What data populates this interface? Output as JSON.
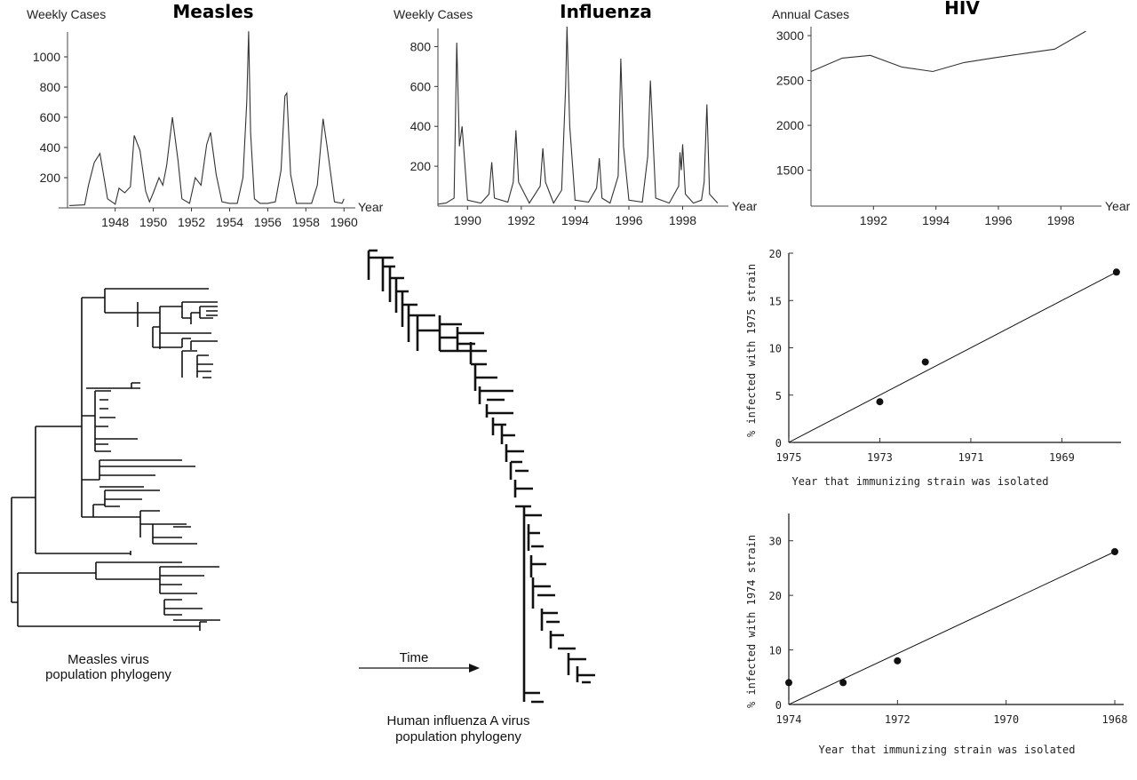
{
  "chart_data": [
    {
      "id": "measles",
      "type": "line",
      "title": "Measles",
      "ylabel": "Weekly Cases",
      "xlabel": "Year",
      "xlim": [
        1945.5,
        1960.5
      ],
      "ylim": [
        0,
        1200
      ],
      "xticks": [
        "1948",
        "1950",
        "1952",
        "1954",
        "1956",
        "1958",
        "1960"
      ],
      "yticks": [
        "200",
        "400",
        "600",
        "800",
        "1000"
      ],
      "series": [
        {
          "x": [
            1945.6,
            1946.4,
            1946.6,
            1946.9,
            1947.2,
            1947.6,
            1948.0,
            1948.2,
            1948.5,
            1948.8,
            1949.0,
            1949.3,
            1949.6,
            1949.8,
            1950.0,
            1950.3,
            1950.5,
            1950.7,
            1951.0,
            1951.3,
            1951.5,
            1951.9,
            1952.2,
            1952.5,
            1952.8,
            1953.0,
            1953.3,
            1953.6,
            1954.0,
            1954.4,
            1954.7,
            1954.9,
            1955.0,
            1955.1,
            1955.3,
            1955.6,
            1956.0,
            1956.4,
            1956.7,
            1956.9,
            1957.0,
            1957.2,
            1957.5,
            1957.9,
            1958.3,
            1958.6,
            1958.9,
            1959.1,
            1959.5,
            1959.9,
            1960.0
          ],
          "y": [
            15,
            20,
            150,
            300,
            360,
            60,
            25,
            130,
            100,
            140,
            480,
            380,
            110,
            40,
            100,
            200,
            150,
            280,
            600,
            310,
            60,
            30,
            200,
            150,
            420,
            500,
            220,
            40,
            30,
            30,
            200,
            700,
            1170,
            500,
            60,
            30,
            30,
            40,
            250,
            740,
            760,
            220,
            30,
            30,
            30,
            150,
            590,
            420,
            40,
            30,
            60
          ]
        }
      ]
    },
    {
      "id": "influenza",
      "type": "line",
      "title": "Influenza",
      "ylabel": "Weekly Cases",
      "xlabel": "Year",
      "xlim": [
        1988.9,
        1999.7
      ],
      "ylim": [
        0,
        900
      ],
      "xticks": [
        "1990",
        "1992",
        "1994",
        "1996",
        "1998"
      ],
      "yticks": [
        "200",
        "400",
        "600",
        "800"
      ],
      "series": [
        {
          "x": [
            1988.9,
            1989.2,
            1989.5,
            1989.6,
            1989.7,
            1989.8,
            1990.0,
            1990.5,
            1990.8,
            1990.9,
            1991.0,
            1991.5,
            1991.7,
            1991.8,
            1991.9,
            1992.3,
            1992.7,
            1992.8,
            1992.9,
            1993.2,
            1993.5,
            1993.65,
            1993.7,
            1993.8,
            1994.0,
            1994.5,
            1994.8,
            1994.9,
            1995.0,
            1995.3,
            1995.6,
            1995.7,
            1995.8,
            1996.0,
            1996.5,
            1996.7,
            1996.8,
            1997.0,
            1997.5,
            1997.85,
            1997.9,
            1997.95,
            1998.0,
            1998.1,
            1998.4,
            1998.7,
            1998.8,
            1998.9,
            1999.0,
            1999.3
          ],
          "y": [
            10,
            15,
            40,
            820,
            300,
            400,
            30,
            15,
            60,
            220,
            40,
            20,
            120,
            380,
            120,
            15,
            100,
            290,
            120,
            15,
            80,
            600,
            900,
            400,
            30,
            20,
            90,
            240,
            40,
            15,
            150,
            740,
            300,
            30,
            20,
            250,
            630,
            40,
            15,
            100,
            270,
            180,
            310,
            60,
            15,
            30,
            120,
            510,
            60,
            15
          ]
        }
      ]
    },
    {
      "id": "hiv",
      "type": "line",
      "title": "HIV",
      "ylabel": "Annual Cases",
      "xlabel": "Year",
      "xlim": [
        1990,
        1999.3
      ],
      "ylim": [
        1100,
        3100
      ],
      "xticks": [
        "1992",
        "1994",
        "1996",
        "1998"
      ],
      "yticks": [
        "1500",
        "2000",
        "2500",
        "3000"
      ],
      "series": [
        {
          "x": [
            1990.0,
            1991.0,
            1991.9,
            1992.9,
            1993.9,
            1994.9,
            1995.8,
            1996.8,
            1997.8,
            1998.8
          ],
          "y": [
            2600,
            2750,
            2780,
            2650,
            2600,
            2700,
            2750,
            2800,
            2850,
            3050
          ]
        }
      ]
    },
    {
      "id": "scatter1975",
      "type": "scatter",
      "ylabel": "% infected with 1975 strain",
      "xlabel": "Year that immunizing strain was isolated",
      "xlim": [
        1975,
        1967.7
      ],
      "ylim": [
        0,
        20
      ],
      "xticks": [
        "1975",
        "1973",
        "1971",
        "1969"
      ],
      "yticks": [
        "0",
        "5",
        "10",
        "15",
        "20"
      ],
      "points": {
        "x": [
          1973,
          1972,
          1967.8
        ],
        "y": [
          4.3,
          8.5,
          18
        ]
      },
      "fit": {
        "x": [
          1975,
          1967.8
        ],
        "y": [
          0,
          18
        ]
      }
    },
    {
      "id": "scatter1974",
      "type": "scatter",
      "ylabel": "% infected with 1974 strain",
      "xlabel": "Year that immunizing strain was isolated",
      "xlim": [
        1974,
        1968
      ],
      "ylim": [
        0,
        35
      ],
      "xticks": [
        "1974",
        "1972",
        "1970",
        "1968"
      ],
      "yticks": [
        "0",
        "10",
        "20",
        "30"
      ],
      "points": {
        "x": [
          1974,
          1973,
          1972,
          1968
        ],
        "y": [
          4,
          4,
          8,
          28
        ]
      },
      "fit": {
        "x": [
          1974,
          1968
        ],
        "y": [
          0,
          28
        ]
      }
    }
  ],
  "diagram": {
    "measles_caption_line1": "Measles virus",
    "measles_caption_line2": "population phylogeny",
    "time_label": "Time",
    "influenza_caption_line1": "Human influenza A virus",
    "influenza_caption_line2": "population phylogeny"
  }
}
